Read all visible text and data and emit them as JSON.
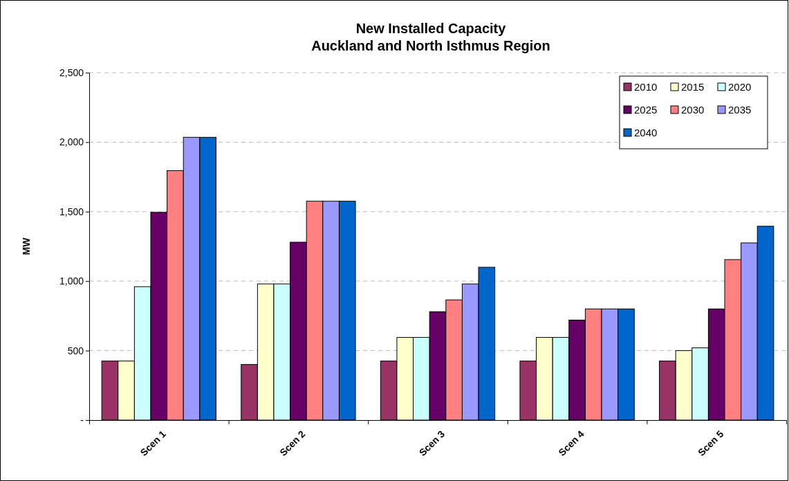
{
  "chart_data": {
    "type": "bar",
    "title": "New Installed Capacity\nAuckland and North Isthmus Region",
    "ylabel": "MW",
    "categories": [
      "Scen 1",
      "Scen 2",
      "Scen 3",
      "Scen 4",
      "Scen 5"
    ],
    "series": [
      {
        "name": "2010",
        "color": "#993366",
        "values": [
          425,
          400,
          425,
          425,
          425
        ]
      },
      {
        "name": "2015",
        "color": "#ffffcc",
        "values": [
          425,
          980,
          595,
          595,
          500
        ]
      },
      {
        "name": "2020",
        "color": "#ccffff",
        "values": [
          960,
          980,
          595,
          595,
          520
        ]
      },
      {
        "name": "2025",
        "color": "#660066",
        "values": [
          1495,
          1280,
          780,
          720,
          800
        ]
      },
      {
        "name": "2030",
        "color": "#ff8080",
        "values": [
          1795,
          1575,
          865,
          800,
          1155
        ]
      },
      {
        "name": "2035",
        "color": "#9999ff",
        "values": [
          2035,
          1575,
          980,
          800,
          1275
        ]
      },
      {
        "name": "2040",
        "color": "#0066cc",
        "values": [
          2035,
          1575,
          1100,
          800,
          1395
        ]
      }
    ],
    "ylim": [
      0,
      2500
    ],
    "yticks": [
      {
        "value": 0,
        "label": "-"
      },
      500,
      {
        "value": 1000,
        "label": "1,000"
      },
      {
        "value": 1500,
        "label": "1,500"
      },
      {
        "value": 2000,
        "label": "2,000"
      },
      {
        "value": 2500,
        "label": "2,500"
      }
    ],
    "grid": "y",
    "legend": "top right"
  }
}
